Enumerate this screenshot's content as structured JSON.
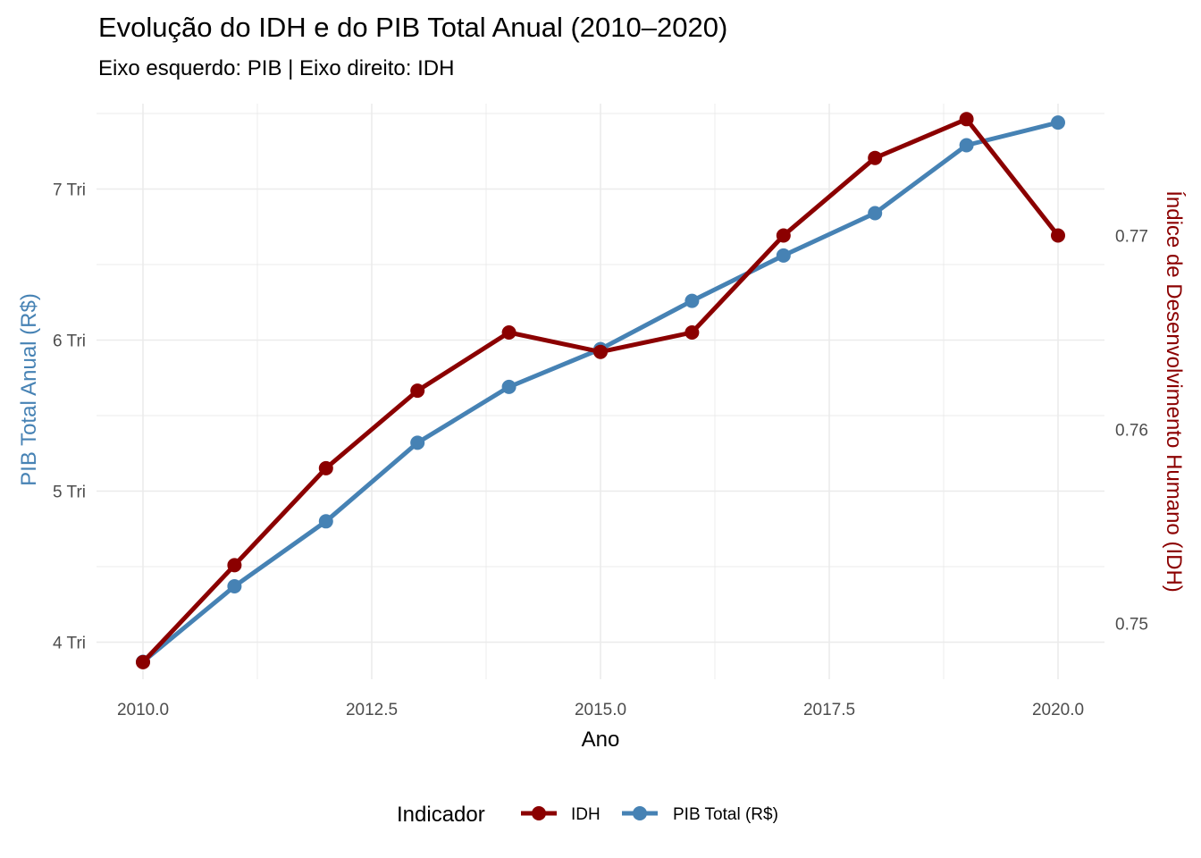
{
  "chart_data": {
    "type": "line",
    "title": "Evolução do IDH e do PIB Total Anual (2010–2020)",
    "subtitle": "Eixo esquerdo: PIB | Eixo direito: IDH",
    "xlabel": "Ano",
    "ylabel_left": "PIB Total Anual (R$)",
    "ylabel_right": "Índice de Desenvolvimento Humano (IDH)",
    "x": [
      2010,
      2011,
      2012,
      2013,
      2014,
      2015,
      2016,
      2017,
      2018,
      2019,
      2020
    ],
    "xlim": [
      2009.8,
      2020.2
    ],
    "x_ticks": [
      2010.0,
      2012.5,
      2015.0,
      2017.5,
      2020.0
    ],
    "x_tick_labels": [
      "2010.0",
      "2012.5",
      "2015.0",
      "2017.5",
      "2020.0"
    ],
    "y_left_ticks": [
      4,
      5,
      6,
      7
    ],
    "y_left_tick_labels": [
      "4 Tri",
      "5 Tri",
      "6 Tri",
      "7 Tri"
    ],
    "y_right_ticks": [
      0.75,
      0.76,
      0.77
    ],
    "y_right_tick_labels": [
      "0.75",
      "0.76",
      "0.77"
    ],
    "series": [
      {
        "name": "PIB Total (R$)",
        "axis": "left",
        "unit": "trilhões R$",
        "color": "#4682b4",
        "values": [
          3.87,
          4.37,
          4.8,
          5.32,
          5.69,
          5.94,
          6.26,
          6.56,
          6.84,
          7.29,
          7.44
        ]
      },
      {
        "name": "IDH",
        "axis": "right",
        "color": "#8b0000",
        "values": [
          0.748,
          0.753,
          0.758,
          0.762,
          0.765,
          0.764,
          0.765,
          0.77,
          0.774,
          0.776,
          0.77
        ]
      }
    ],
    "grid": true,
    "legend": {
      "title": "Indicador",
      "position": "bottom",
      "items": [
        {
          "label": "IDH",
          "color": "#8b0000"
        },
        {
          "label": "PIB Total (R$)",
          "color": "#4682b4"
        }
      ]
    }
  }
}
